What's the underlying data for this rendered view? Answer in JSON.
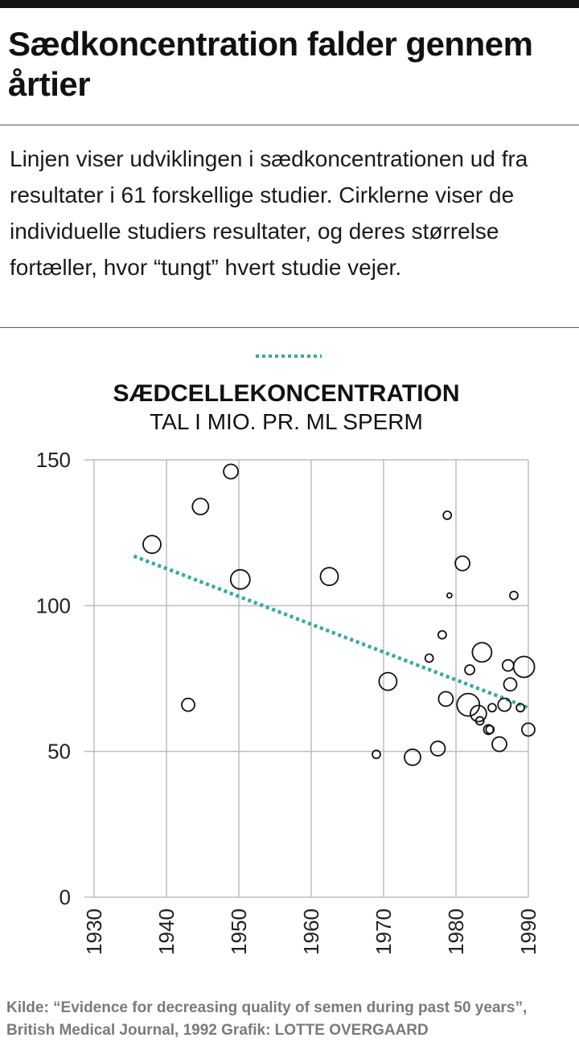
{
  "title": "Sædkoncentration falder gennem årtier",
  "subtitle": "Linjen viser udviklingen i sædkoncentrationen ud fra resultater i 61 forskellige studier. Cirklerne viser de individuelle studiers resultater, og deres størrelse fortæller, hvor “tungt” hvert studie vejer.",
  "footer": {
    "source": "Kilde: “Evidence for decreasing quality of semen during past 50 years”, British Medical Journal, 1992",
    "credit": "Grafik: LOTTE OVERGAARD"
  },
  "colors": {
    "trend": "#3aa898",
    "grid": "#bdbdbd",
    "ink": "#111111"
  },
  "chart_data": {
    "type": "scatter",
    "title": "SÆDCELLEKONCENTRATION",
    "ylabel": "TAL I MIO. PR. ML SPERM",
    "xlim": [
      1930,
      1990
    ],
    "ylim": [
      0,
      150
    ],
    "x_ticks": [
      1930,
      1940,
      1950,
      1960,
      1970,
      1980,
      1990
    ],
    "y_ticks": [
      0,
      50,
      100,
      150
    ],
    "grid": true,
    "legend": "top-center",
    "trend_line": {
      "from": [
        1935.5,
        117
      ],
      "to": [
        1990,
        65
      ]
    },
    "points": [
      {
        "x": 1938,
        "y": 121,
        "weight": 11
      },
      {
        "x": 1943,
        "y": 66,
        "weight": 8
      },
      {
        "x": 1944.7,
        "y": 134,
        "weight": 10
      },
      {
        "x": 1948.9,
        "y": 146,
        "weight": 9
      },
      {
        "x": 1950.2,
        "y": 109,
        "weight": 12
      },
      {
        "x": 1962.5,
        "y": 110,
        "weight": 11
      },
      {
        "x": 1969,
        "y": 49,
        "weight": 5
      },
      {
        "x": 1970.6,
        "y": 74,
        "weight": 11
      },
      {
        "x": 1974,
        "y": 48,
        "weight": 10
      },
      {
        "x": 1976.3,
        "y": 82,
        "weight": 5
      },
      {
        "x": 1977.5,
        "y": 51,
        "weight": 9
      },
      {
        "x": 1978.1,
        "y": 90,
        "weight": 5
      },
      {
        "x": 1978.6,
        "y": 68,
        "weight": 9
      },
      {
        "x": 1978.8,
        "y": 131,
        "weight": 5
      },
      {
        "x": 1979.1,
        "y": 103.5,
        "weight": 3
      },
      {
        "x": 1980.9,
        "y": 114.5,
        "weight": 9
      },
      {
        "x": 1981.7,
        "y": 66,
        "weight": 14
      },
      {
        "x": 1981.9,
        "y": 78,
        "weight": 6
      },
      {
        "x": 1983.1,
        "y": 63,
        "weight": 10
      },
      {
        "x": 1983.3,
        "y": 60.5,
        "weight": 5
      },
      {
        "x": 1983.6,
        "y": 84,
        "weight": 12
      },
      {
        "x": 1984.5,
        "y": 57.5,
        "weight": 6
      },
      {
        "x": 1984.7,
        "y": 57.5,
        "weight": 5
      },
      {
        "x": 1985,
        "y": 65,
        "weight": 5
      },
      {
        "x": 1986,
        "y": 52.5,
        "weight": 9
      },
      {
        "x": 1986.7,
        "y": 66,
        "weight": 8
      },
      {
        "x": 1987.2,
        "y": 79.5,
        "weight": 7
      },
      {
        "x": 1987.5,
        "y": 73,
        "weight": 8
      },
      {
        "x": 1988,
        "y": 103.5,
        "weight": 5
      },
      {
        "x": 1988.9,
        "y": 65,
        "weight": 5
      },
      {
        "x": 1989.4,
        "y": 79,
        "weight": 13
      },
      {
        "x": 1990,
        "y": 57.5,
        "weight": 8
      }
    ]
  }
}
